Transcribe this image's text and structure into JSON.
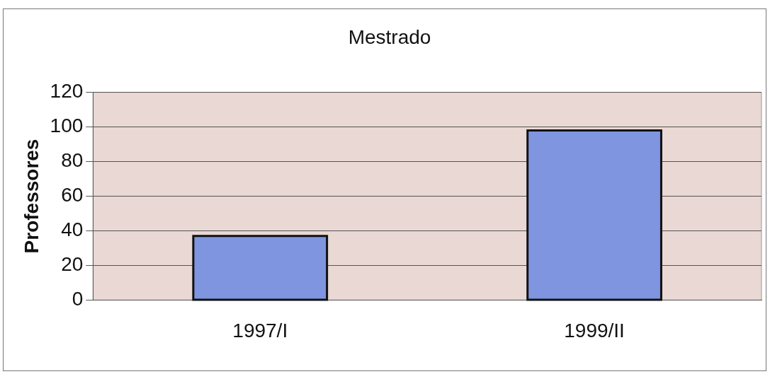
{
  "chart_data": {
    "type": "bar",
    "title": "Mestrado",
    "ylabel": "Professores",
    "categories": [
      "1997/I",
      "1999/II"
    ],
    "values": [
      37,
      98
    ],
    "color": "#7f95e0",
    "ylim": [
      0,
      120
    ],
    "yticks": [
      0,
      20,
      40,
      60,
      80,
      100,
      120
    ],
    "grid": "y"
  }
}
